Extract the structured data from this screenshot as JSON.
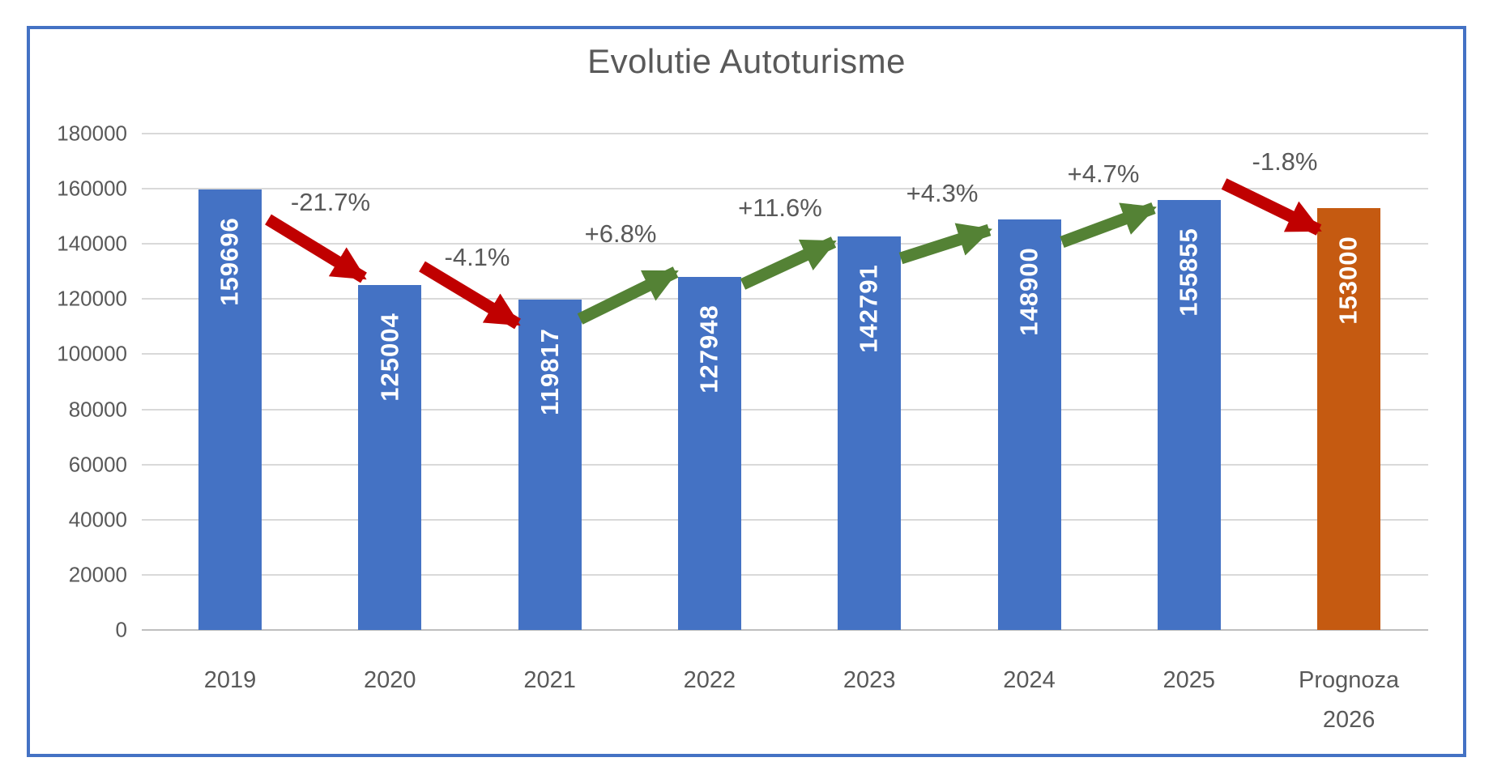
{
  "chart_data": {
    "type": "bar",
    "title": "Evolutie Autoturisme",
    "categories": [
      "2019",
      "2020",
      "2021",
      "2022",
      "2023",
      "2024",
      "2025",
      "Prognoza\n2026"
    ],
    "values": [
      159696,
      125004,
      119817,
      127948,
      142791,
      148900,
      155855,
      153000
    ],
    "bar_colors": [
      "#4472C4",
      "#4472C4",
      "#4472C4",
      "#4472C4",
      "#4472C4",
      "#4472C4",
      "#4472C4",
      "#C55A11"
    ],
    "changes": [
      {
        "label": "-21.7%",
        "direction": "down"
      },
      {
        "label": "-4.1%",
        "direction": "down"
      },
      {
        "label": "+6.8%",
        "direction": "up"
      },
      {
        "label": "+11.6%",
        "direction": "up"
      },
      {
        "label": "+4.3%",
        "direction": "up"
      },
      {
        "label": "+4.7%",
        "direction": "up"
      },
      {
        "label": "-1.8%",
        "direction": "down"
      }
    ],
    "ylim": [
      0,
      180000
    ],
    "yticks": [
      0,
      20000,
      40000,
      60000,
      80000,
      100000,
      120000,
      140000,
      160000,
      180000
    ],
    "grid": true,
    "legend": "none",
    "colors": {
      "bar_default": "#4472C4",
      "bar_prognosis": "#C55A11",
      "arrow_up": "#548235",
      "arrow_down": "#C00000",
      "text": "#595959",
      "bar_label_text": "#FFFFFF",
      "gridline": "#D9D9D9",
      "axis_line": "#BFBFBF",
      "frame_border": "#4472C4"
    }
  }
}
